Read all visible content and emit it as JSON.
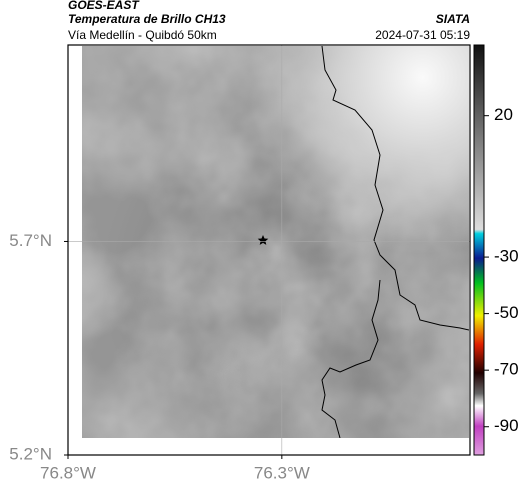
{
  "header": {
    "title": "GOES-EAST",
    "subtitle": "Temperatura de Brillo CH13",
    "route": "Vía Medellín - Quibdó 50km",
    "source": "SIATA",
    "timestamp": "2024-07-31 05:19"
  },
  "map": {
    "xlim": [
      -76.8,
      -75.86
    ],
    "ylim": [
      5.2,
      6.16
    ],
    "xticks": [
      {
        "value": -76.8,
        "label": "76.8°W"
      },
      {
        "value": -76.3,
        "label": "76.3°W"
      }
    ],
    "yticks": [
      {
        "value": 5.2,
        "label": "5.2°N"
      },
      {
        "value": 5.7,
        "label": "5.7°N"
      }
    ],
    "grid": true
  },
  "colorbar": {
    "lim": [
      -100,
      45
    ],
    "ticks": [
      20,
      -30,
      -50,
      -70,
      -90
    ]
  }
}
